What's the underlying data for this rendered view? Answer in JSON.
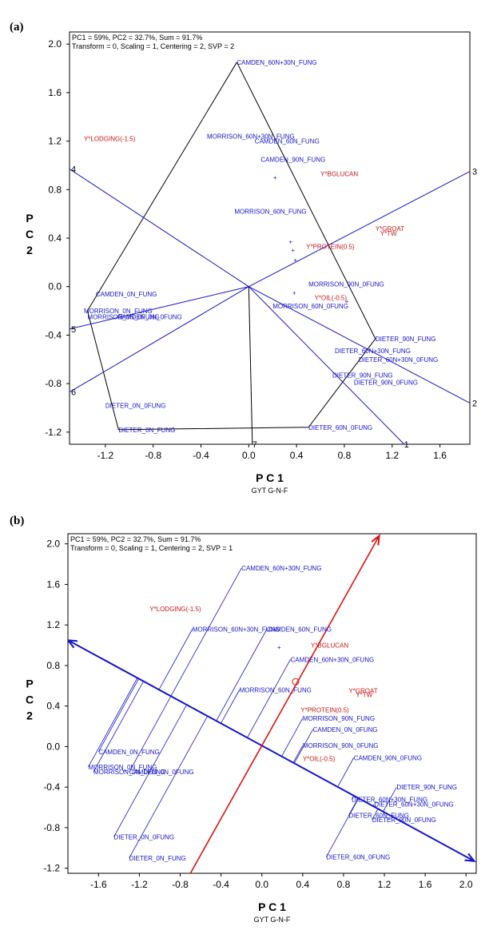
{
  "chart_data": [
    {
      "type": "scatter",
      "panel_label": "(a)",
      "info_lines": [
        "PC1 = 59%, PC2 = 32.7%, Sum = 91.7%",
        "Transform = 0, Scaling = 1, Centering = 2, SVP = 2"
      ],
      "xlabel": "P C 1",
      "ylabel": "P C 2",
      "subtitle": "GYT G-N-F",
      "xlim": [
        -1.5,
        1.85
      ],
      "ylim": [
        -1.3,
        2.1
      ],
      "xticks": [
        "-1.2",
        "-0.8",
        "-0.4",
        "0.0",
        "0.4",
        "0.8",
        "1.2",
        "1.6"
      ],
      "xtick_values": [
        -1.2,
        -0.8,
        -0.4,
        0.0,
        0.4,
        0.8,
        1.2,
        1.6
      ],
      "yticks": [
        "2.0",
        "1.6",
        "1.2",
        "0.8",
        "0.4",
        "0.0",
        "-0.4",
        "-0.8",
        "-1.2"
      ],
      "ytick_values": [
        2.0,
        1.6,
        1.2,
        0.8,
        0.4,
        0.0,
        -0.4,
        -0.8,
        -1.2
      ],
      "genotypes": [
        {
          "label": "CAMDEN_60N+30N_FUNG",
          "x": -0.1,
          "y": 1.85
        },
        {
          "label": "MORRISON_60N+30N_FUNG",
          "x": -0.35,
          "y": 1.24
        },
        {
          "label": "CAMDEN_60N_FUNG",
          "x": 0.05,
          "y": 1.2
        },
        {
          "label": "CAMDEN_90N_FUNG",
          "x": 0.1,
          "y": 1.05
        },
        {
          "label": "MORRISON_60N_FUNG",
          "x": -0.12,
          "y": 0.62
        },
        {
          "label": "MORRISON_90N_0FUNG",
          "x": 0.5,
          "y": 0.02
        },
        {
          "label": "MORRISON_60N_0FUNG",
          "x": 0.2,
          "y": -0.16
        },
        {
          "label": "CAMDEN_0N_FUNG",
          "x": -1.28,
          "y": -0.06
        },
        {
          "label": "MORRISON_0N_FUNG",
          "x": -1.38,
          "y": -0.2
        },
        {
          "label": "MORRISON_0N_0FUNG",
          "x": -1.35,
          "y": -0.25
        },
        {
          "label": "CAMDEN_0N_0FUNG",
          "x": -1.1,
          "y": -0.25
        },
        {
          "label": "DIETER_90N_FUNG",
          "x": 1.06,
          "y": -0.43
        },
        {
          "label": "DIETER_60N+30N_FUNG",
          "x": 0.72,
          "y": -0.53
        },
        {
          "label": "DIETER_60N+30N_0FUNG",
          "x": 0.92,
          "y": -0.6
        },
        {
          "label": "DIETER_90N_FUNG",
          "x": 0.7,
          "y": -0.73
        },
        {
          "label": "DIETER_90N_0FUNG",
          "x": 0.88,
          "y": -0.79
        },
        {
          "label": "DIETER_0N_0FUNG",
          "x": -1.2,
          "y": -0.98
        },
        {
          "label": "DIETER_0N_FUNG",
          "x": -1.09,
          "y": -1.18
        },
        {
          "label": "DIETER_60N_0FUNG",
          "x": 0.5,
          "y": -1.16
        }
      ],
      "environments": [
        {
          "label": "Y*LODGING(-1.5)",
          "x": -1.38,
          "y": 1.22
        },
        {
          "label": "Y*BGLUCAN",
          "x": 0.6,
          "y": 0.93
        },
        {
          "label": "Y*GROAT",
          "x": 1.06,
          "y": 0.48
        },
        {
          "label": "Y*TW",
          "x": 1.1,
          "y": 0.44
        },
        {
          "label": "Y*PROTEIN(0.5)",
          "x": 0.48,
          "y": 0.33
        },
        {
          "label": "Y*OIL(-0.5)",
          "x": 0.55,
          "y": -0.09
        }
      ],
      "hull": [
        [
          -0.1,
          1.85
        ],
        [
          1.06,
          -0.43
        ],
        [
          0.5,
          -1.16
        ],
        [
          -1.09,
          -1.18
        ],
        [
          -1.35,
          -0.2
        ],
        [
          -0.1,
          1.85
        ]
      ],
      "ray_ends": [
        [
          1.3,
          -1.3
        ],
        [
          1.85,
          -0.96
        ],
        [
          1.85,
          0.95
        ],
        [
          -1.5,
          0.97
        ],
        [
          -1.5,
          -0.35
        ],
        [
          -1.5,
          -0.87
        ],
        [
          0.03,
          -1.3
        ]
      ],
      "ray_labels": [
        "1",
        "2",
        "3",
        "4",
        "5",
        "6",
        "7"
      ],
      "colors": {
        "genotype": "#1515c8",
        "environment": "#c81414",
        "hull": "#000000",
        "ray": "#1515c8"
      }
    },
    {
      "type": "scatter",
      "panel_label": "(b)",
      "info_lines": [
        "PC1 = 59%, PC2 = 32.7%, Sum = 91.7%",
        "Transform = 0, Scaling = 1, Centering = 2, SVP = 1"
      ],
      "xlabel": "P C 1",
      "ylabel": "P C 2",
      "subtitle": "GYT G-N-F",
      "xlim": [
        -1.9,
        2.1
      ],
      "ylim": [
        -1.25,
        2.1
      ],
      "xticks": [
        "-1.6",
        "-1.2",
        "-0.8",
        "-0.4",
        "0.0",
        "0.4",
        "0.8",
        "1.2",
        "1.6",
        "2.0"
      ],
      "xtick_values": [
        -1.6,
        -1.2,
        -0.8,
        -0.4,
        0.0,
        0.4,
        0.8,
        1.2,
        1.6,
        2.0
      ],
      "yticks": [
        "2.0",
        "1.6",
        "1.2",
        "0.8",
        "0.4",
        "0.0",
        "-0.4",
        "-0.8",
        "-1.2"
      ],
      "ytick_values": [
        2.0,
        1.6,
        1.2,
        0.8,
        0.4,
        0.0,
        -0.4,
        -0.8,
        -1.2
      ],
      "genotypes": [
        {
          "label": "CAMDEN_60N+30N_FUNG",
          "x": -0.2,
          "y": 1.76
        },
        {
          "label": "MORRISON_60N+30N_FUNG",
          "x": -0.68,
          "y": 1.16
        },
        {
          "label": "CAMDEN_60N_FUNG",
          "x": 0.05,
          "y": 1.16
        },
        {
          "label": "CAMDEN_60N+30N_0FUNG",
          "x": 0.28,
          "y": 0.86
        },
        {
          "label": "MORRISON_60N_FUNG",
          "x": -0.22,
          "y": 0.56
        },
        {
          "label": "MORRISON_90N_FUNG",
          "x": 0.4,
          "y": 0.28
        },
        {
          "label": "CAMDEN_0N_0FUNG",
          "x": 0.5,
          "y": 0.17
        },
        {
          "label": "MORRISON_90N_0FUNG",
          "x": 0.4,
          "y": 0.01
        },
        {
          "label": "CAMDEN_90N_0FUNG",
          "x": 0.9,
          "y": -0.11
        },
        {
          "label": "CAMDEN_0N_FUNG",
          "x": -1.6,
          "y": -0.05
        },
        {
          "label": "MORRISON_0N_FUNG",
          "x": -1.7,
          "y": -0.2
        },
        {
          "label": "MORRISON_0N_0FUNG",
          "x": -1.65,
          "y": -0.25
        },
        {
          "label": "CAMDEN_0N_0FUNG",
          "x": -1.3,
          "y": -0.25
        },
        {
          "label": "DIETER_90N_FUNG",
          "x": 1.32,
          "y": -0.4
        },
        {
          "label": "DIETER_60N+30N_FUNG",
          "x": 0.88,
          "y": -0.52
        },
        {
          "label": "DIETER_60N+30N_0FUNG",
          "x": 1.1,
          "y": -0.57
        },
        {
          "label": "DIETER_60N_FUNG",
          "x": 0.85,
          "y": -0.68
        },
        {
          "label": "DIETER_90N_0FUNG",
          "x": 1.08,
          "y": -0.72
        },
        {
          "label": "DIETER_0N_0FUNG",
          "x": -1.45,
          "y": -0.89
        },
        {
          "label": "DIETER_0N_FUNG",
          "x": -1.3,
          "y": -1.1
        },
        {
          "label": "DIETER_60N_0FUNG",
          "x": 0.63,
          "y": -1.09
        }
      ],
      "environments": [
        {
          "label": "Y*LODGING(-1.5)",
          "x": -1.1,
          "y": 1.36
        },
        {
          "label": "Y*BGLUCAN",
          "x": 0.48,
          "y": 1.0
        },
        {
          "label": "Y*GROAT",
          "x": 0.85,
          "y": 0.55
        },
        {
          "label": "Y*TW",
          "x": 0.92,
          "y": 0.51
        },
        {
          "label": "Y*PROTEIN(0.5)",
          "x": 0.38,
          "y": 0.36
        },
        {
          "label": "Y*OIL(-0.5)",
          "x": 0.4,
          "y": -0.12
        }
      ],
      "blue_axis": [
        [
          -1.9,
          1.05
        ],
        [
          2.08,
          -1.13
        ]
      ],
      "red_axis": [
        [
          -0.7,
          -1.25
        ],
        [
          1.15,
          2.08
        ]
      ],
      "colors": {
        "genotype": "#1515c8",
        "environment": "#c81414",
        "blue_axis": "#1515c8",
        "red_axis": "#e01010"
      }
    }
  ]
}
